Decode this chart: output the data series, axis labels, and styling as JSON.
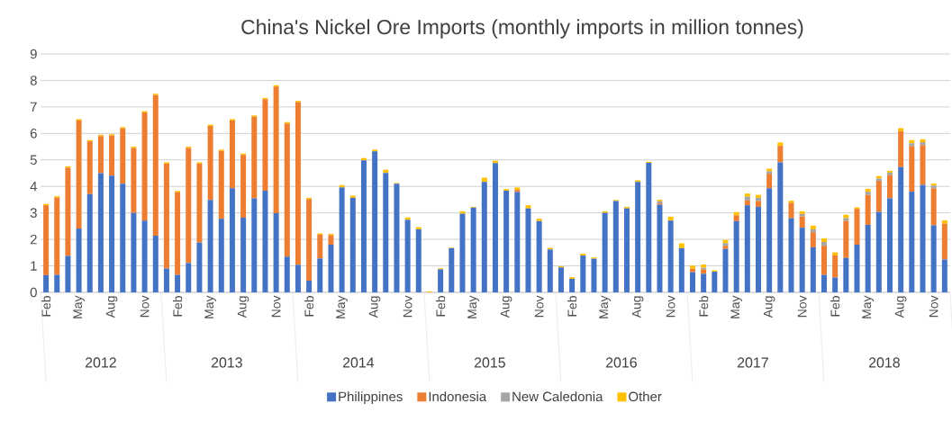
{
  "chart_data": {
    "type": "bar",
    "title": "China's Nickel Ore Imports (monthly imports in million tonnes)",
    "stacked": true,
    "grid": "y",
    "legend": "bottom",
    "categories": [
      "Feb",
      null,
      null,
      "May",
      null,
      null,
      "Aug",
      null,
      null,
      "Nov",
      null,
      null,
      "Feb",
      null,
      null,
      "May",
      null,
      null,
      "Aug",
      null,
      null,
      "Nov",
      null,
      null,
      "Feb",
      null,
      null,
      "May",
      null,
      null,
      "Aug",
      null,
      null,
      "Nov",
      null,
      null,
      "Feb",
      null,
      null,
      "May",
      null,
      null,
      "Aug",
      null,
      null,
      "Nov",
      null,
      null,
      "Feb",
      null,
      null,
      "May",
      null,
      null,
      "Aug",
      null,
      null,
      "Nov",
      null,
      null,
      "Feb",
      null,
      null,
      "May",
      null,
      null,
      "Aug",
      null,
      null,
      "Nov",
      null,
      null,
      "Feb",
      null,
      null,
      "May",
      null,
      null,
      "Aug",
      null,
      null,
      "Nov",
      null
    ],
    "annotations": [
      "2012",
      "2013",
      "2014",
      "2015",
      "2016",
      "2017",
      "2018"
    ],
    "ylim": [
      0,
      9
    ],
    "yticks": [
      0,
      1,
      2,
      3,
      4,
      5,
      6,
      7,
      8,
      9
    ],
    "series": [
      {
        "name": "Philippines",
        "color": "#4472c4",
        "values": [
          0.65,
          0.66,
          1.38,
          2.41,
          3.71,
          4.5,
          4.41,
          4.1,
          3.0,
          2.71,
          2.14,
          0.9,
          0.66,
          1.11,
          1.88,
          3.49,
          2.78,
          3.93,
          2.82,
          3.55,
          3.84,
          2.99,
          1.35,
          1.04,
          0.44,
          1.28,
          1.8,
          3.96,
          3.57,
          4.98,
          5.32,
          4.51,
          4.1,
          2.74,
          2.38,
          0,
          0.87,
          1.67,
          2.97,
          3.2,
          4.17,
          4.88,
          3.84,
          3.79,
          3.17,
          2.69,
          1.62,
          0.94,
          0.51,
          1.39,
          1.27,
          3.0,
          3.45,
          3.17,
          4.17,
          4.89,
          3.31,
          2.71,
          1.67,
          0.76,
          0.7,
          0.78,
          1.64,
          2.69,
          3.29,
          3.23,
          3.93,
          4.91,
          2.8,
          2.44,
          1.7,
          0.66,
          0.56,
          1.3,
          1.8,
          2.55,
          3.04,
          3.55,
          4.73,
          3.8,
          4.06,
          2.53,
          1.24
        ]
      },
      {
        "name": "Indonesia",
        "color": "#ed7d31",
        "values": [
          2.64,
          2.92,
          3.33,
          4.08,
          1.99,
          1.4,
          1.51,
          2.09,
          2.45,
          4.08,
          5.31,
          3.96,
          3.12,
          4.34,
          2.98,
          2.79,
          2.56,
          2.56,
          2.37,
          3.08,
          3.45,
          4.78,
          5.03,
          6.14,
          3.08,
          0.9,
          0.36,
          0,
          0,
          0,
          0,
          0,
          0,
          0,
          0,
          0,
          0,
          0,
          0,
          0,
          0,
          0,
          0,
          0.08,
          0,
          0,
          0,
          0,
          0,
          0,
          0,
          0,
          0,
          0,
          0,
          0,
          0.05,
          0,
          0,
          0.13,
          0.17,
          0,
          0.12,
          0.22,
          0.18,
          0.22,
          0.55,
          0.62,
          0.58,
          0.43,
          0.57,
          1.1,
          0.84,
          1.4,
          1.35,
          1.13,
          1.17,
          0.87,
          1.36,
          1.72,
          1.5,
          1.4,
          1.35
        ]
      },
      {
        "name": "New Caledonia",
        "color": "#a5a5a5",
        "values": [
          0,
          0,
          0,
          0,
          0,
          0,
          0,
          0,
          0,
          0,
          0,
          0,
          0,
          0,
          0,
          0,
          0,
          0,
          0,
          0,
          0,
          0,
          0,
          0,
          0,
          0,
          0,
          0,
          0,
          0,
          0,
          0,
          0,
          0,
          0,
          0,
          0,
          0,
          0,
          0,
          0,
          0,
          0,
          0,
          0,
          0,
          0,
          0,
          0,
          0,
          0,
          0,
          0,
          0,
          0,
          0,
          0.08,
          0,
          0,
          null,
          0.06,
          0,
          0.1,
          0,
          0.14,
          0.12,
          0.09,
          0,
          0,
          0.09,
          0.11,
          0.14,
          0,
          0.1,
          0,
          0.12,
          0.09,
          0.1,
          0,
          0.11,
          0.11,
          0.1,
          0
        ]
      },
      {
        "name": "Other",
        "color": "#ffc000",
        "values": [
          0.05,
          0.05,
          0.05,
          0.05,
          0.05,
          0.05,
          0.05,
          0.05,
          0.05,
          0.05,
          0.05,
          0.05,
          0.05,
          0.05,
          0.05,
          0.05,
          0.05,
          0.05,
          0.05,
          0.05,
          0.05,
          0.05,
          0.05,
          0.05,
          0.05,
          0.05,
          0.05,
          0.09,
          0.08,
          0.09,
          0.07,
          0.12,
          0.03,
          0.09,
          0.08,
          0.03,
          0.04,
          0.02,
          0.09,
          0.03,
          0.16,
          0.09,
          0.06,
          0.09,
          0.12,
          0.09,
          0.06,
          0.05,
          0.06,
          0.07,
          0.05,
          0.06,
          0.04,
          0.06,
          0.06,
          0.04,
          0.06,
          0.15,
          0.18,
          0.12,
          0.12,
          0.05,
          0.12,
          0.12,
          0.12,
          0.11,
          0.1,
          0.13,
          0.08,
          0.1,
          0.14,
          0.14,
          0.11,
          0.13,
          0.06,
          0.11,
          0.09,
          0.07,
          0.11,
          0.12,
          0.11,
          0.08,
          0.13
        ]
      }
    ]
  }
}
